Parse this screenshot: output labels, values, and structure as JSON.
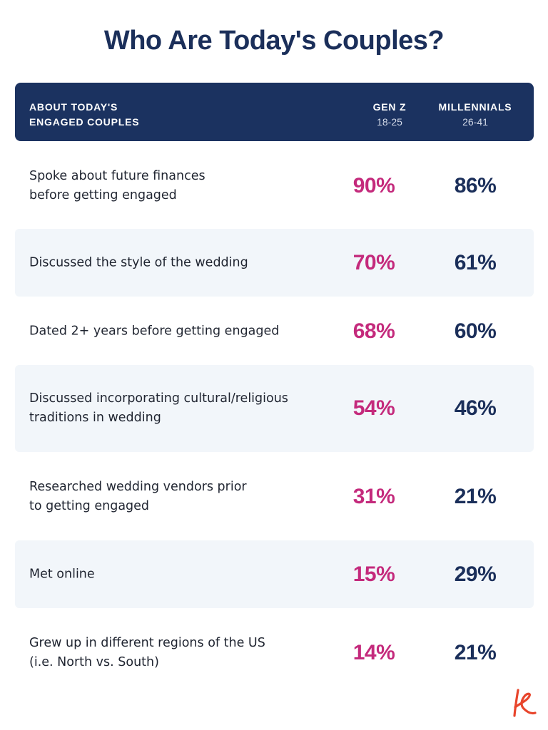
{
  "title": "Who Are Today's Couples?",
  "colors": {
    "navy": "#1b3260",
    "magenta": "#c42a7c",
    "shade": "#f2f6fa",
    "logo": "#e8452c"
  },
  "header": {
    "label": "ABOUT TODAY'S\nENGAGED COUPLES",
    "gen_z_name": "GEN Z",
    "gen_z_age": "18-25",
    "millennials_name": "MILLENNIALS",
    "millennials_age": "26-41"
  },
  "chart_data": {
    "type": "table",
    "title": "Who Are Today's Couples?",
    "columns": [
      "ABOUT TODAY'S ENGAGED COUPLES",
      "GEN Z 18-25",
      "MILLENNIALS 26-41"
    ],
    "rows": [
      {
        "label": "Spoke about future finances\nbefore getting engaged",
        "gen_z": "90%",
        "millennials": "86%"
      },
      {
        "label": "Discussed the style of the wedding",
        "gen_z": "70%",
        "millennials": "61%"
      },
      {
        "label": "Dated 2+ years before getting engaged",
        "gen_z": "68%",
        "millennials": "60%"
      },
      {
        "label": "Discussed incorporating cultural/religious\ntraditions in wedding",
        "gen_z": "54%",
        "millennials": "46%"
      },
      {
        "label": "Researched wedding vendors prior\nto getting engaged",
        "gen_z": "31%",
        "millennials": "21%"
      },
      {
        "label": "Met online",
        "gen_z": "15%",
        "millennials": "29%"
      },
      {
        "label": "Grew up in different regions of the US\n(i.e. North vs. South)",
        "gen_z": "14%",
        "millennials": "21%"
      }
    ]
  },
  "logo": {
    "icon": "k-logo-icon"
  }
}
